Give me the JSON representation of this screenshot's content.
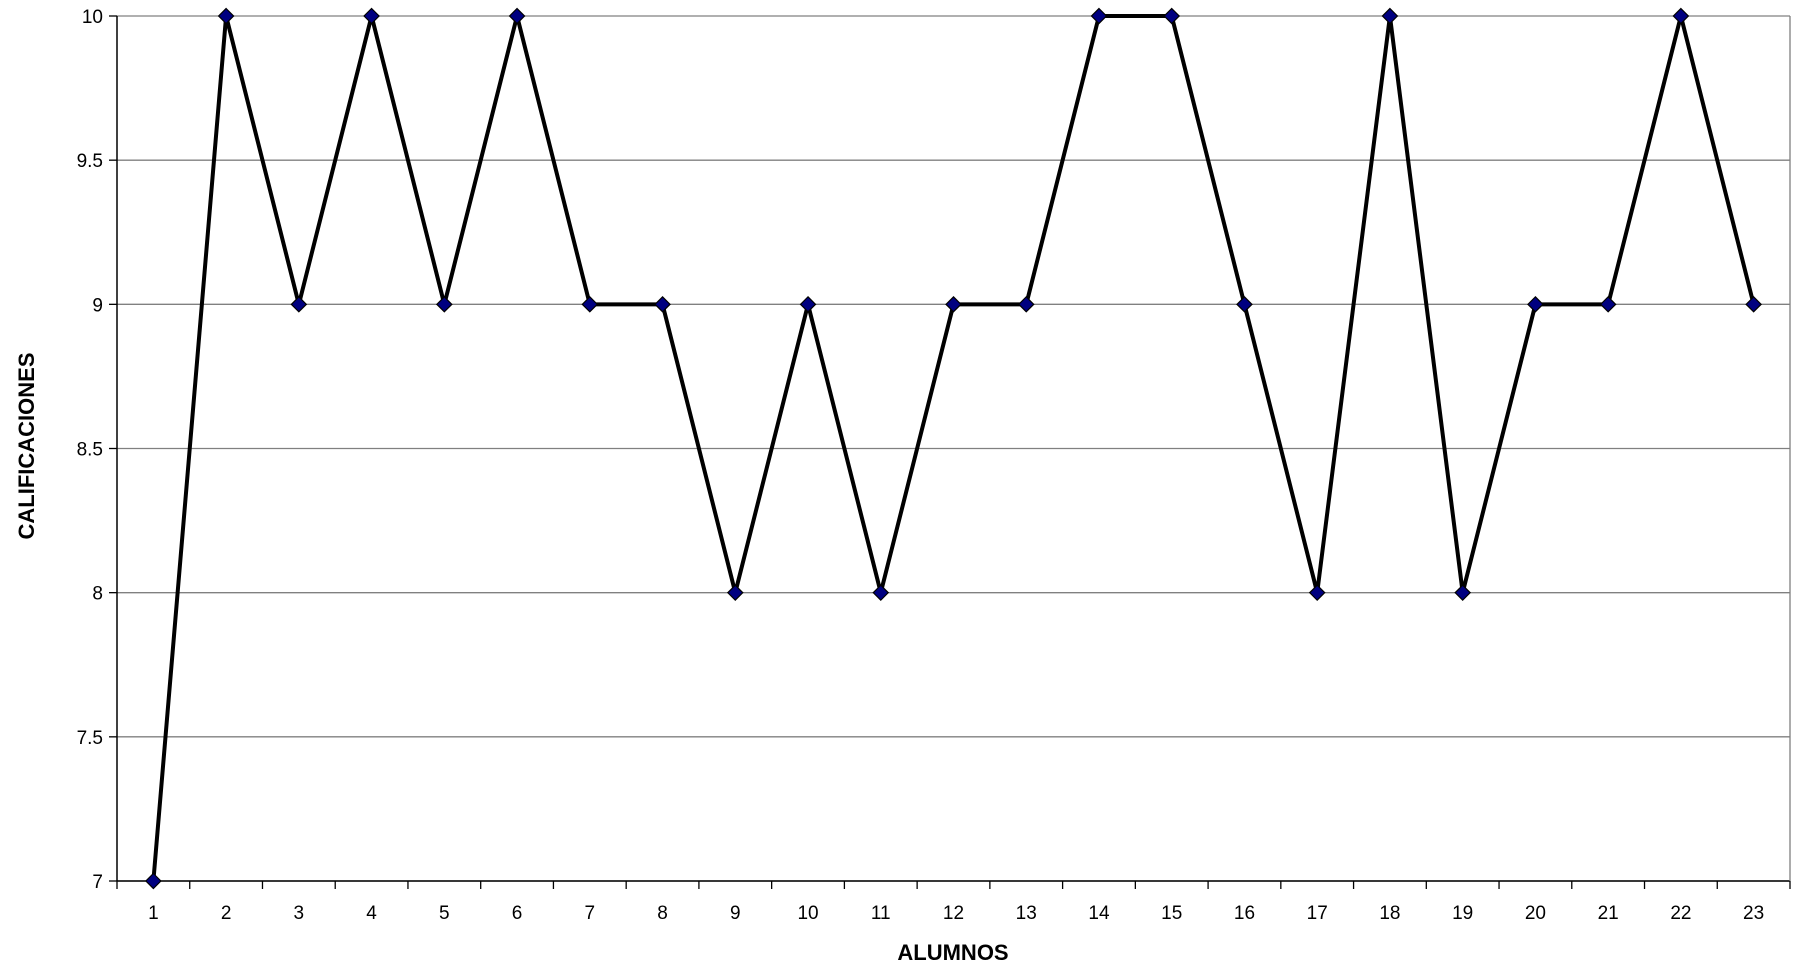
{
  "chart_data": {
    "type": "line",
    "xlabel": "ALUMNOS",
    "ylabel": "CALIFICACIONES",
    "x": [
      "1",
      "2",
      "3",
      "4",
      "5",
      "6",
      "7",
      "8",
      "9",
      "10",
      "11",
      "12",
      "13",
      "14",
      "15",
      "16",
      "17",
      "18",
      "19",
      "20",
      "21",
      "22",
      "23"
    ],
    "series": [
      {
        "values": [
          7,
          10,
          9,
          10,
          9,
          10,
          9,
          9,
          8,
          9,
          8,
          9,
          9,
          10,
          10,
          9,
          8,
          10,
          8,
          9,
          9,
          10,
          9
        ]
      }
    ],
    "ylim": [
      7,
      10
    ],
    "yticks": [
      "7",
      "7.5",
      "8",
      "8.5",
      "9",
      "9.5",
      "10"
    ],
    "grid": "horizontal",
    "legend": "none",
    "colors": {
      "line": "#000000",
      "marker_fill": "#000080",
      "marker_stroke": "#000000",
      "grid": "#808080",
      "axis": "#000000"
    }
  }
}
